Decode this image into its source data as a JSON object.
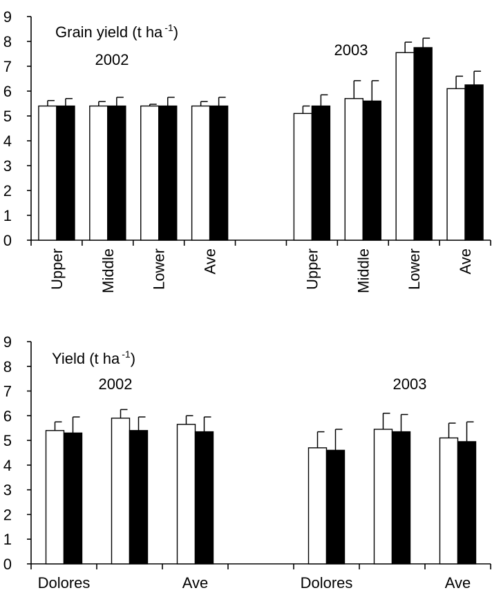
{
  "chart_data": [
    {
      "type": "bar",
      "title": "Grain yield (t ha",
      "title_superscript": "-1",
      "title_suffix": ")",
      "year_labels": [
        "2002",
        "2003"
      ],
      "categories": [
        "Upper",
        "Middle",
        "Lower",
        "Ave",
        "",
        "Upper",
        "Middle",
        "Lower",
        "Ave"
      ],
      "series": [
        {
          "color": "#ffffff",
          "values": [
            5.4,
            5.4,
            5.4,
            5.4,
            null,
            5.1,
            5.7,
            7.55,
            6.1
          ],
          "errors": [
            0.22,
            0.18,
            0.07,
            0.18,
            null,
            0.3,
            0.72,
            0.42,
            0.5
          ]
        },
        {
          "color": "#000000",
          "values": [
            5.4,
            5.4,
            5.4,
            5.4,
            null,
            5.4,
            5.6,
            7.75,
            6.25
          ],
          "errors": [
            0.3,
            0.35,
            0.35,
            0.35,
            null,
            0.45,
            0.82,
            0.38,
            0.55
          ]
        }
      ],
      "ylim": [
        0,
        9
      ],
      "yticks": [
        0,
        1,
        2,
        3,
        4,
        5,
        6,
        7,
        8,
        9
      ],
      "grid": false,
      "legend": "none"
    },
    {
      "type": "bar",
      "title": "Yield (t ha",
      "title_superscript": "-1",
      "title_suffix": ")",
      "year_labels": [
        "2002",
        "2003"
      ],
      "categories": [
        "Dolores",
        "",
        "Ave",
        "",
        "Dolores",
        "",
        "Ave"
      ],
      "series": [
        {
          "color": "#ffffff",
          "values": [
            5.4,
            5.9,
            5.65,
            null,
            4.7,
            5.45,
            5.1
          ],
          "errors": [
            0.35,
            0.35,
            0.35,
            null,
            0.65,
            0.65,
            0.6
          ]
        },
        {
          "color": "#000000",
          "values": [
            5.3,
            5.4,
            5.35,
            null,
            4.6,
            5.35,
            4.95
          ],
          "errors": [
            0.65,
            0.55,
            0.6,
            null,
            0.85,
            0.7,
            0.8
          ]
        }
      ],
      "ylim": [
        0,
        9
      ],
      "yticks": [
        0,
        1,
        2,
        3,
        4,
        5,
        6,
        7,
        8,
        9
      ],
      "grid": false,
      "legend": "none"
    }
  ]
}
